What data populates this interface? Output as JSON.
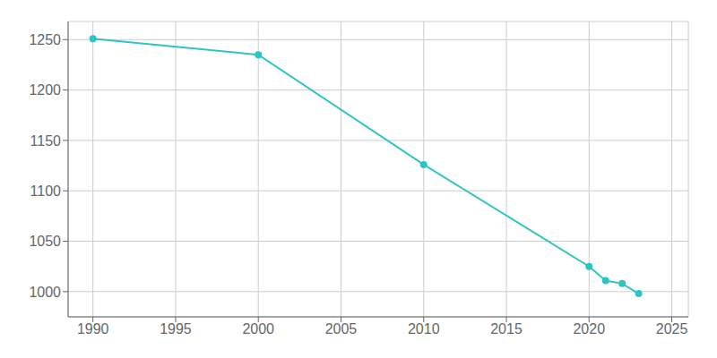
{
  "chart_data": {
    "type": "line",
    "x": [
      1990,
      2000,
      2010,
      2020,
      2021,
      2022,
      2023
    ],
    "values": [
      1251,
      1235,
      1126,
      1025,
      1011,
      1008,
      998
    ],
    "color": "#2EC4C4",
    "marker": "o",
    "xlim": [
      1988.5,
      2026
    ],
    "ylim": [
      975,
      1268
    ],
    "xticks": [
      1990,
      1995,
      2000,
      2005,
      2010,
      2015,
      2020,
      2025
    ],
    "yticks": [
      1000,
      1050,
      1100,
      1150,
      1200,
      1250
    ],
    "grid": true
  }
}
